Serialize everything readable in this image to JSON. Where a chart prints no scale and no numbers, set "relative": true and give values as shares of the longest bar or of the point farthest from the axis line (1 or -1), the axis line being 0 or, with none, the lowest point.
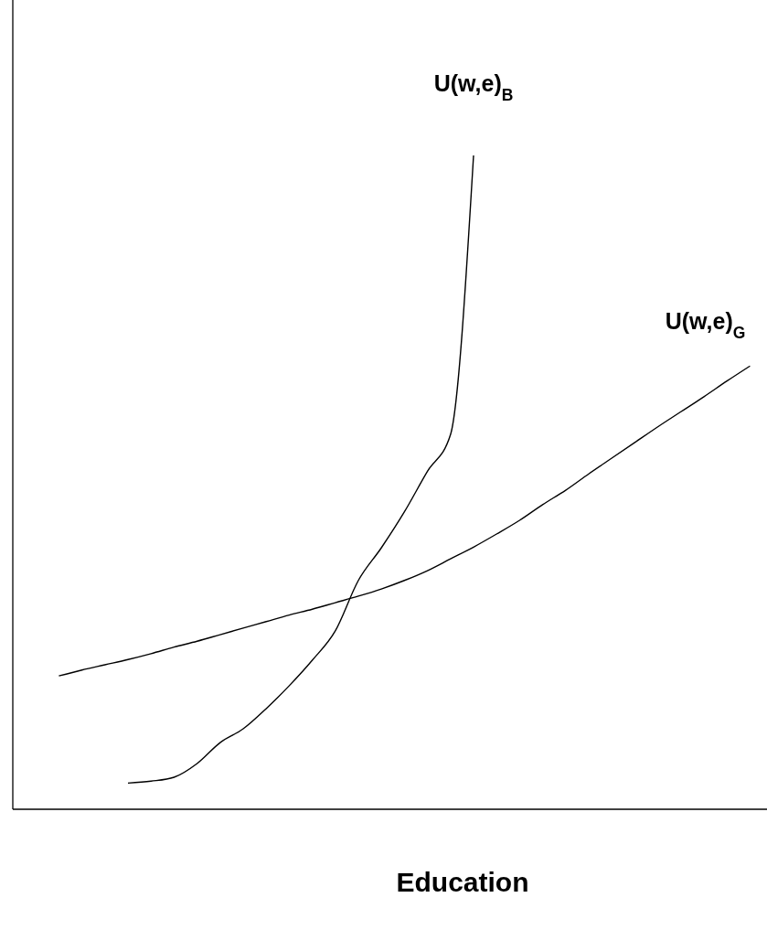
{
  "chart_data": {
    "type": "line",
    "xlabel": "Education",
    "relative": true,
    "categories": [
      null,
      null,
      null,
      null,
      null,
      null,
      null,
      null,
      null,
      null,
      null,
      null,
      null,
      null,
      null,
      null,
      null,
      null,
      null,
      null,
      null,
      null,
      null,
      null,
      null,
      null,
      null,
      null,
      null,
      null,
      null,
      null,
      null
    ],
    "series": [
      {
        "name": "U(w,e)$_{B}$",
        "color": "#000000",
        "values": [
          null,
          null,
          null,
          null,
          null,
          0.04,
          0.043,
          0.049,
          0.07,
          0.102,
          0.123,
          0.154,
          0.189,
          0.228,
          0.273,
          0.35,
          0.4,
          0.455,
          0.517,
          0.573,
          1.0,
          null,
          null,
          null,
          null,
          null,
          null,
          null,
          null,
          null,
          null,
          null,
          null
        ]
      },
      {
        "name": "U(w,e)$_{G}$",
        "color": "#000000",
        "values": [
          null,
          null,
          0.204,
          0.213,
          0.221,
          0.229,
          0.238,
          0.248,
          0.257,
          0.267,
          0.277,
          0.287,
          0.297,
          0.306,
          0.316,
          0.326,
          0.337,
          0.35,
          0.365,
          0.383,
          0.401,
          0.421,
          0.442,
          0.466,
          0.488,
          0.513,
          0.537,
          0.561,
          0.585,
          0.608,
          0.631,
          0.655,
          0.678
        ]
      }
    ],
    "legend": false,
    "marker": "none",
    "line_style": "solid"
  }
}
